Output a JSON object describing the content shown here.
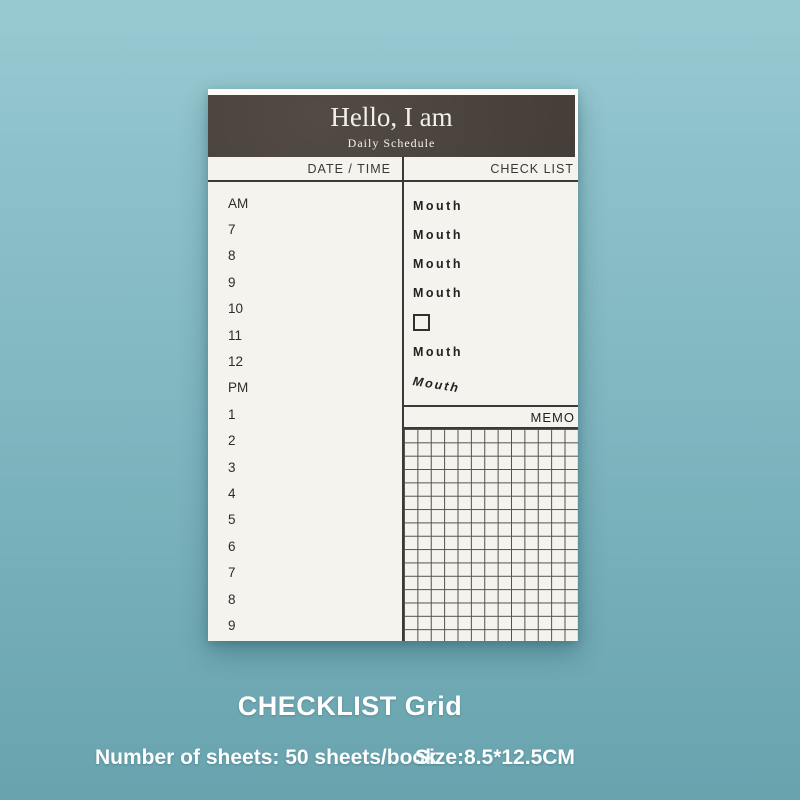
{
  "colors": {
    "background_top": "#97c9d1",
    "background_mid": "#7fb6c0",
    "background_bottom": "#68a3ae",
    "paper": "#f4f3ee",
    "paper_edge": "#fbfaf6",
    "header_band": "#4b433c",
    "header_text": "#f3f0ea",
    "line": "#3c3a37",
    "grid_line": "#55514c",
    "ink": "#2e2c29",
    "caption_text": "#ffffff"
  },
  "notepad": {
    "title": "Hello, I am",
    "subtitle": "Daily Schedule",
    "date_time_header": "DATE / TIME",
    "check_list_header": "CHECK LIST",
    "memo_header": "MEMO",
    "time_labels": [
      "AM",
      "7",
      "8",
      "9",
      "10",
      "11",
      "12",
      "PM",
      "1",
      "2",
      "3",
      "4",
      "5",
      "6",
      "7",
      "8",
      "9"
    ],
    "checklist_items": [
      {
        "type": "label",
        "text": "Mouth"
      },
      {
        "type": "label",
        "text": "Mouth"
      },
      {
        "type": "label",
        "text": "Mouth"
      },
      {
        "type": "label",
        "text": "Mouth"
      },
      {
        "type": "checkbox"
      },
      {
        "type": "label",
        "text": "Mouth"
      },
      {
        "type": "label_slanted",
        "text": "Mouth"
      }
    ]
  },
  "captions": {
    "style_name": "CHECKLIST Grid",
    "sheets": "Number of sheets: 50 sheets/book",
    "size": "Size:8.5*12.5CM"
  }
}
